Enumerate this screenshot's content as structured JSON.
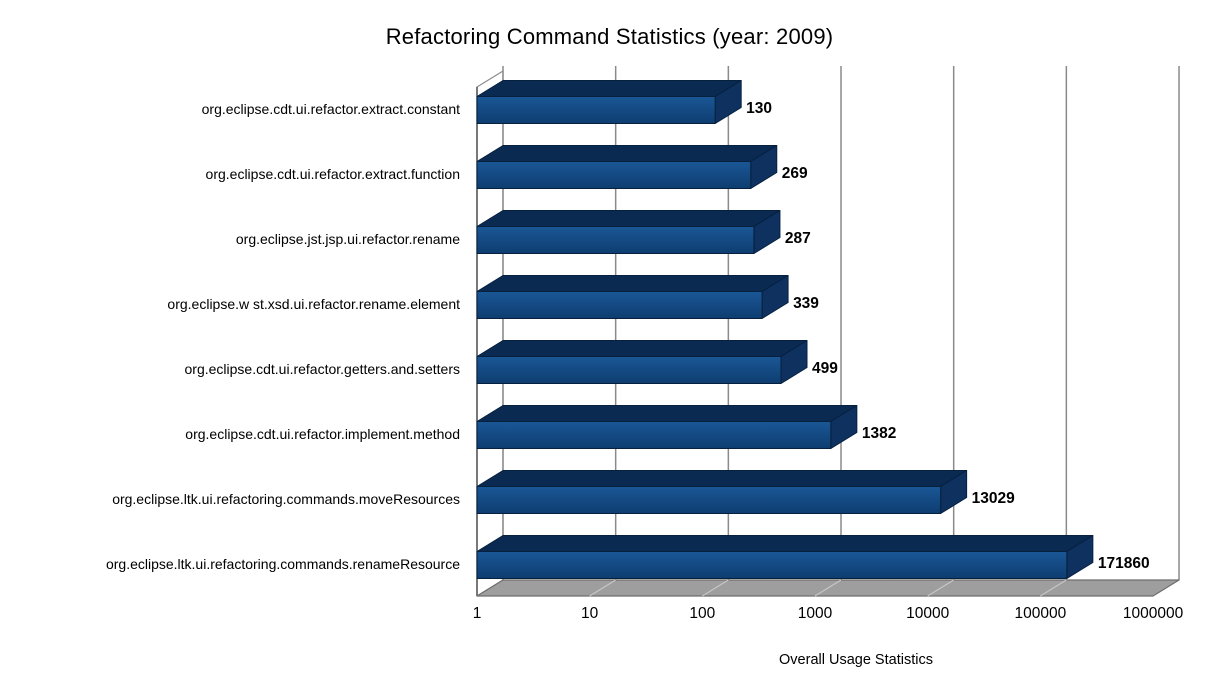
{
  "chart_data": {
    "type": "bar",
    "orientation": "horizontal",
    "style": "3d",
    "scale": "log",
    "title": "Refactoring Command Statistics (year: 2009)",
    "xlabel": "Overall Usage Statistics",
    "ylabel": "",
    "categories": [
      "org.eclipse.cdt.ui.refactor.extract.constant",
      "org.eclipse.cdt.ui.refactor.extract.function",
      "org.eclipse.jst.jsp.ui.refactor.rename",
      "org.eclipse.w st.xsd.ui.refactor.rename.element",
      "org.eclipse.cdt.ui.refactor.getters.and.setters",
      "org.eclipse.cdt.ui.refactor.implement.method",
      "org.eclipse.ltk.ui.refactoring.commands.moveResources",
      "org.eclipse.ltk.ui.refactoring.commands.renameResource"
    ],
    "values": [
      130,
      269,
      287,
      339,
      499,
      1382,
      13029,
      171860
    ],
    "value_labels": [
      "130",
      "269",
      "287",
      "339",
      "499",
      "1382",
      "13029",
      "171860"
    ],
    "x_ticks": [
      "1",
      "10",
      "100",
      "1000",
      "10000",
      "100000",
      "1000000"
    ],
    "xlim": [
      1,
      1000000
    ],
    "grid": true,
    "legend": false,
    "colors": {
      "bar_front_light": "#1A5796",
      "bar_front_dark": "#0E3D70",
      "bar_top": "#0A2A52",
      "bar_end": "#0E3160",
      "bar_outline": "#06203E",
      "gridline": "#8A8A8A",
      "floor": "#9E9E9E",
      "floor_line": "#C6C6C6",
      "floor_edge": "#6E6E6E",
      "wall_fill": "#FFFFFF",
      "wall_edge": "#8C8C8C",
      "axis_line": "#3C3C3C",
      "text": "#000000"
    }
  }
}
